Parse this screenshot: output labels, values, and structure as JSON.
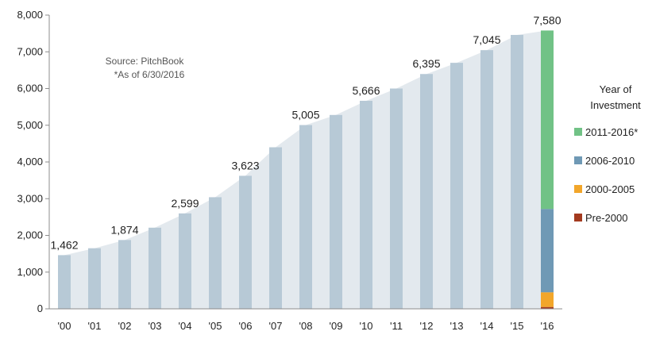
{
  "chart_data": {
    "type": "bar",
    "categories": [
      "'00",
      "'01",
      "'02",
      "'03",
      "'04",
      "'05",
      "'06",
      "'07",
      "'08",
      "'09",
      "'10",
      "'11",
      "'12",
      "'13",
      "'14",
      "'15",
      "'16"
    ],
    "values": [
      1462,
      1650,
      1874,
      2210,
      2599,
      3040,
      3623,
      4400,
      5005,
      5280,
      5666,
      6000,
      6395,
      6700,
      7045,
      7460,
      7580
    ],
    "data_labels": {
      "0": "1,462",
      "2": "1,874",
      "4": "2,599",
      "6": "3,623",
      "8": "5,005",
      "10": "5,666",
      "12": "6,395",
      "14": "7,045",
      "16": "7,580"
    },
    "stacked_last_bar": {
      "category": "'16",
      "segments": [
        {
          "name": "Pre-2000",
          "value": 50,
          "color": "#a33a1f"
        },
        {
          "name": "2000-2005",
          "value": 400,
          "color": "#f2a62a"
        },
        {
          "name": "2006-2010",
          "value": 2270,
          "color": "#6f99b5"
        },
        {
          "name": "2011-2016*",
          "value": 4860,
          "color": "#71c286"
        }
      ]
    },
    "y_ticks": [
      "0",
      "1,000",
      "2,000",
      "3,000",
      "4,000",
      "5,000",
      "6,000",
      "7,000",
      "8,000"
    ],
    "ylim": [
      0,
      8000
    ],
    "grid": false,
    "bar_color": "#b7c9d6",
    "area_color": "#e3e9ee",
    "legend": {
      "title_line1": "Year of",
      "title_line2": "Investment",
      "position": "right",
      "items": [
        {
          "label": "2011-2016*",
          "color": "#71c286"
        },
        {
          "label": "2006-2010",
          "color": "#6f99b5"
        },
        {
          "label": "2000-2005",
          "color": "#f2a62a"
        },
        {
          "label": "Pre-2000",
          "color": "#a33a1f"
        }
      ]
    },
    "notes": {
      "source": "Source: PitchBook",
      "asof": "*As of 6/30/2016"
    }
  }
}
